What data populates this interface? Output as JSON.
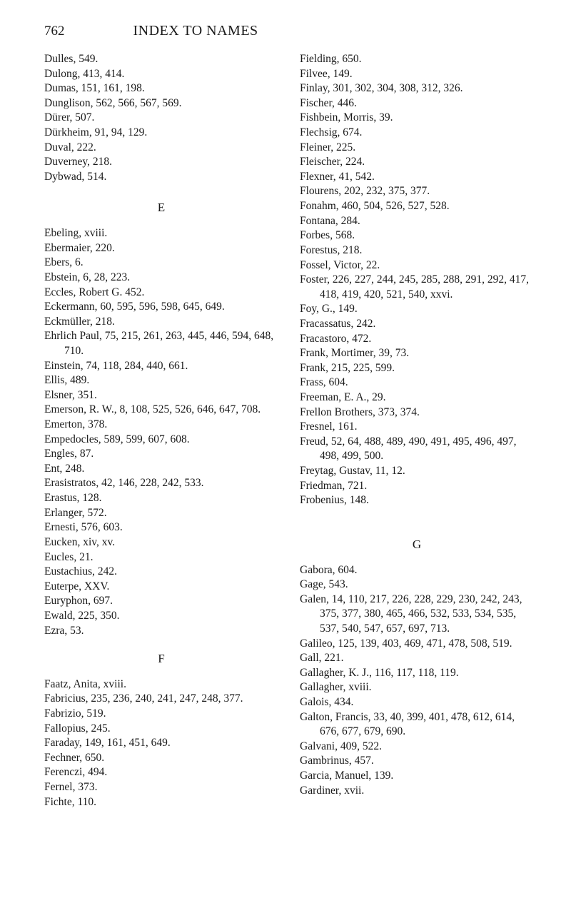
{
  "page_number": "762",
  "header_title": "INDEX TO NAMES",
  "left_column": {
    "block1": [
      "Dulles, 549.",
      "Dulong, 413, 414.",
      "Dumas, 151, 161, 198.",
      "Dunglison, 562, 566, 567, 569.",
      "Dürer, 507.",
      "Dürkheim, 91, 94, 129.",
      "Duval, 222.",
      "Duverney, 218.",
      "Dybwad, 514."
    ],
    "heading_E": "E",
    "block_E": [
      "Ebeling, xviii.",
      "Ebermaier, 220.",
      "Ebers, 6.",
      "Ebstein, 6, 28, 223.",
      "Eccles, Robert G. 452.",
      "Eckermann, 60, 595, 596, 598, 645, 649.",
      "Eckmüller, 218.",
      "Ehrlich Paul, 75, 215, 261, 263, 445, 446, 594, 648, 710.",
      "Einstein, 74, 118, 284, 440, 661.",
      "Ellis, 489.",
      "Elsner, 351.",
      "Emerson, R. W., 8, 108, 525, 526, 646, 647, 708.",
      "Emerton, 378.",
      "Empedocles, 589, 599, 607, 608.",
      "Engles, 87.",
      "Ent, 248.",
      "Erasistratos, 42, 146, 228, 242, 533.",
      "Erastus, 128.",
      "Erlanger, 572.",
      "Ernesti, 576, 603.",
      "Eucken, xiv, xv.",
      "Eucles, 21.",
      "Eustachius, 242.",
      "Euterpe, XXV.",
      "Euryphon, 697.",
      "Ewald, 225, 350.",
      "Ezra, 53."
    ],
    "heading_F": "F",
    "block_F": [
      "Faatz, Anita, xviii.",
      "Fabricius, 235, 236, 240, 241, 247, 248, 377.",
      "Fabrizio, 519.",
      "Fallopius, 245.",
      "Faraday, 149, 161, 451, 649.",
      "Fechner, 650.",
      "Ferenczi, 494.",
      "Fernel, 373.",
      "Fichte, 110."
    ]
  },
  "right_column": {
    "block1": [
      "Fielding, 650.",
      "Filvee, 149.",
      "Finlay, 301, 302, 304, 308, 312, 326.",
      "Fischer, 446.",
      "Fishbein, Morris, 39.",
      "Flechsig, 674.",
      "Fleiner, 225.",
      "Fleischer, 224.",
      "Flexner, 41, 542.",
      "Flourens, 202, 232, 375, 377.",
      "Fonahm, 460, 504, 526, 527, 528.",
      "Fontana, 284.",
      "Forbes, 568.",
      "Forestus, 218.",
      "Fossel, Victor, 22.",
      "Foster, 226, 227, 244, 245, 285, 288, 291, 292, 417, 418, 419, 420, 521, 540, xxvi.",
      "Foy, G., 149.",
      "Fracassatus, 242.",
      "Fracastoro, 472.",
      "Frank, Mortimer, 39, 73.",
      "Frank, 215, 225, 599.",
      "Frass, 604.",
      "Freeman, E. A., 29.",
      "Frellon Brothers, 373, 374.",
      "Fresnel, 161.",
      "Freud, 52, 64, 488, 489, 490, 491, 495, 496, 497, 498, 499, 500.",
      "Freytag, Gustav, 11, 12.",
      "Friedman, 721.",
      "Frobenius, 148."
    ],
    "heading_G": "G",
    "block_G": [
      "Gabora, 604.",
      "Gage, 543.",
      "Galen, 14, 110, 217, 226, 228, 229, 230, 242, 243, 375, 377, 380, 465, 466, 532, 533, 534, 535, 537, 540, 547, 657, 697, 713.",
      "Galileo, 125, 139, 403, 469, 471, 478, 508, 519.",
      "Gall, 221.",
      "Gallagher, K. J., 116, 117, 118, 119.",
      "Gallagher, xviii.",
      "Galois, 434.",
      "Galton, Francis, 33, 40, 399, 401, 478, 612, 614, 676, 677, 679, 690.",
      "Galvani, 409, 522.",
      "Gambrinus, 457.",
      "Garcia, Manuel, 139.",
      "Gardiner, xvii."
    ]
  }
}
